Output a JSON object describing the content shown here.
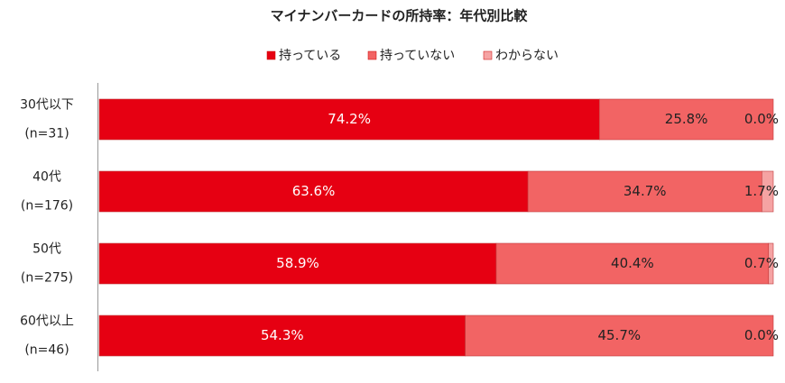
{
  "chart_data": {
    "type": "stacked-bar-horizontal",
    "title": "マイナンバーカードの所持率：年代別比較",
    "categories": [
      "30代以下",
      "40代",
      "50代",
      "60代以上"
    ],
    "category_notes": [
      "(n=31)",
      "(n=176)",
      "(n=275)",
      "(n=46)"
    ],
    "xlim": [
      0,
      100
    ],
    "series": [
      {
        "name": "持っている",
        "color": "#e60012",
        "label_color": "#ffffff",
        "values": [
          74.2,
          63.6,
          58.9,
          54.3
        ],
        "value_labels": [
          "74.2%",
          "63.6%",
          "58.9%",
          "54.3%"
        ]
      },
      {
        "name": "持っていない",
        "color": "#f26464",
        "label_color": "#222222",
        "values": [
          25.8,
          34.7,
          40.4,
          45.7
        ],
        "value_labels": [
          "25.8%",
          "34.7%",
          "40.4%",
          "45.7%"
        ]
      },
      {
        "name": "わからない",
        "color": "#f5a3a3",
        "label_color": "#222222",
        "values": [
          0.0,
          1.7,
          0.7,
          0.0
        ],
        "value_labels": [
          "0.0%",
          "1.7%",
          "0.7%",
          "0.0%"
        ]
      }
    ]
  }
}
